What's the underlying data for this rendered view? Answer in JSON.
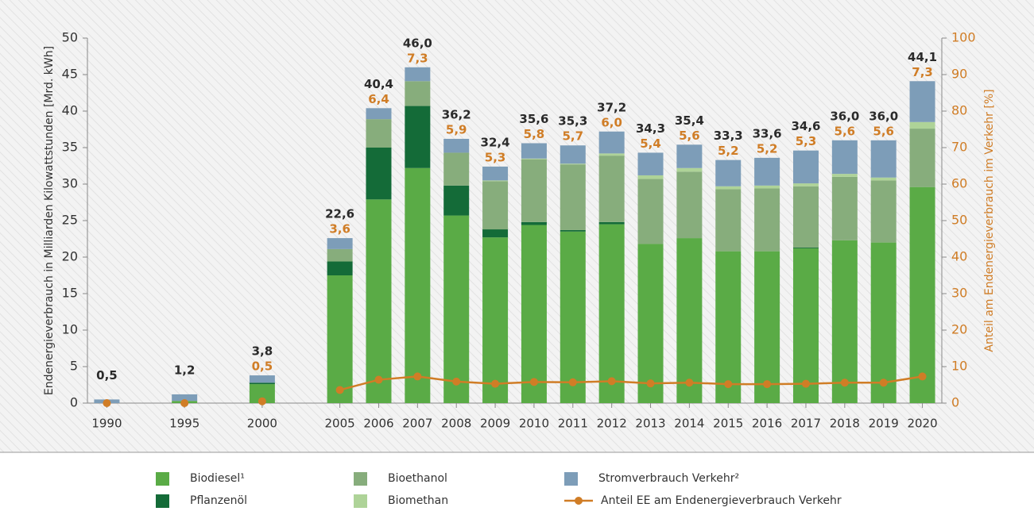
{
  "chart_data": {
    "type": "bar",
    "stacked": true,
    "ylabel": "Endenergieverbrauch in Milliarden Kilowattstunden [Mrd. kWh]",
    "y2label": "Anteil am Endenergieverbrauch im Verkehr [%]",
    "categories": [
      "1990",
      null,
      "1995",
      null,
      "2000",
      null,
      "2005",
      "2006",
      "2007",
      "2008",
      "2009",
      "2010",
      "2011",
      "2012",
      "2013",
      "2014",
      "2015",
      "2016",
      "2017",
      "2018",
      "2019",
      "2020"
    ],
    "ylim": [
      0,
      50
    ],
    "yticks": [
      0,
      5,
      10,
      15,
      20,
      25,
      30,
      35,
      40,
      45,
      50
    ],
    "y2lim": [
      0,
      100
    ],
    "y2ticks": [
      0,
      10,
      20,
      30,
      40,
      50,
      60,
      70,
      80,
      90,
      100
    ],
    "grid": false,
    "series": [
      {
        "name": "Biodiesel¹",
        "color": "#5aab46",
        "values": [
          0,
          null,
          0.3,
          null,
          2.6,
          null,
          17.5,
          27.9,
          32.2,
          25.7,
          22.7,
          24.4,
          23.5,
          24.5,
          21.8,
          22.6,
          20.8,
          20.8,
          21.2,
          22.3,
          22.0,
          29.6
        ]
      },
      {
        "name": "Pflanzenöl",
        "color": "#146b38",
        "values": [
          0,
          null,
          0,
          null,
          0.2,
          null,
          1.9,
          7.1,
          8.5,
          4.1,
          1.1,
          0.4,
          0.2,
          0.3,
          0,
          0,
          0,
          0,
          0.1,
          0,
          0,
          0
        ]
      },
      {
        "name": "Bioethanol",
        "color": "#87ad7c",
        "values": [
          0,
          null,
          0,
          null,
          0,
          null,
          1.7,
          3.9,
          3.4,
          4.5,
          6.6,
          8.6,
          9.0,
          9.1,
          8.9,
          9.1,
          8.5,
          8.6,
          8.4,
          8.7,
          8.5,
          8.0
        ]
      },
      {
        "name": "Biomethan",
        "color": "#aed398",
        "values": [
          0,
          null,
          0,
          null,
          0,
          null,
          0,
          0,
          0,
          0,
          0.1,
          0.1,
          0.1,
          0.3,
          0.5,
          0.5,
          0.4,
          0.4,
          0.4,
          0.4,
          0.4,
          0.9
        ]
      },
      {
        "name": "Stromverbrauch Verkehr²",
        "color": "#7d9db8",
        "values": [
          0.5,
          null,
          0.9,
          null,
          1.0,
          null,
          1.5,
          1.5,
          1.9,
          1.9,
          1.9,
          2.1,
          2.5,
          3.0,
          3.1,
          3.2,
          3.6,
          3.8,
          4.5,
          4.6,
          5.1,
          5.6
        ]
      },
      {
        "name": "Anteil EE am Endenergieverbrauch Verkehr",
        "type": "line",
        "axis": "y2",
        "color": "#d07d26",
        "values": [
          0,
          null,
          0,
          null,
          0.5,
          null,
          3.6,
          6.4,
          7.3,
          5.9,
          5.3,
          5.8,
          5.7,
          6.0,
          5.4,
          5.6,
          5.2,
          5.2,
          5.3,
          5.6,
          5.6,
          7.3
        ],
        "value_labels": [
          null,
          null,
          null,
          null,
          "0,5",
          null,
          "3,6",
          "6,4",
          "7,3",
          "5,9",
          "5,3",
          "5,8",
          "5,7",
          "6,0",
          "5,4",
          "5,6",
          "5,2",
          "5,2",
          "5,3",
          "5,6",
          "5,6",
          "7,3"
        ]
      }
    ],
    "totals": [
      0.5,
      null,
      1.2,
      null,
      3.8,
      null,
      22.6,
      40.4,
      46.0,
      36.2,
      32.4,
      35.6,
      35.3,
      37.2,
      34.3,
      35.4,
      33.3,
      33.6,
      34.6,
      36.0,
      36.0,
      44.1
    ],
    "total_labels": [
      "0,5",
      null,
      "1,2",
      null,
      "3,8",
      null,
      "22,6",
      "40,4",
      "46,0",
      "36,2",
      "32,4",
      "35,6",
      "35,3",
      "37,2",
      "34,3",
      "35,4",
      "33,3",
      "33,6",
      "34,6",
      "36,0",
      "36,0",
      "44,1"
    ]
  }
}
